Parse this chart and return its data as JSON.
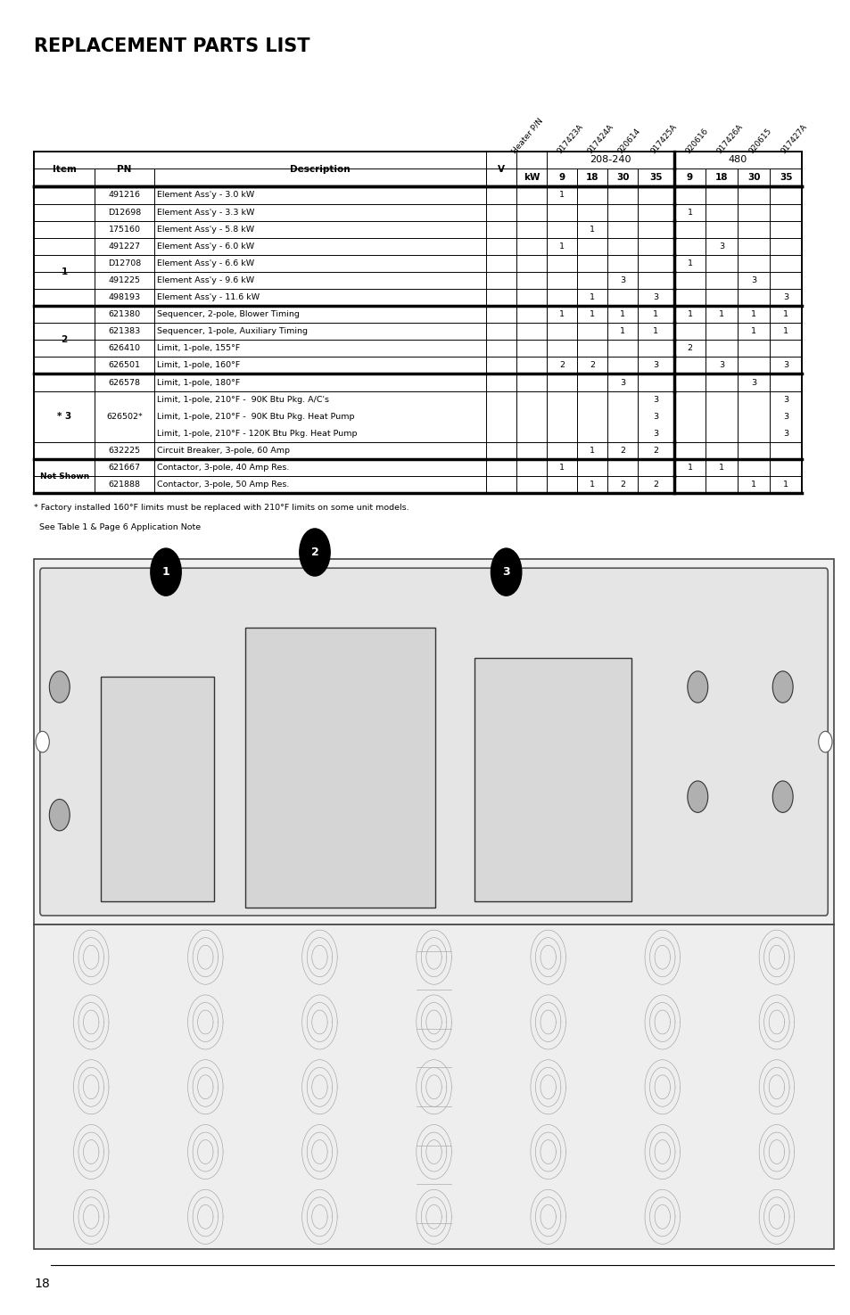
{
  "title": "REPLACEMENT PARTS LIST",
  "page_number": "18",
  "heater_headers": [
    "Heater P/N",
    "917423A",
    "917424A",
    "920614",
    "917425A",
    "920616",
    "917426A",
    "920615",
    "917427A"
  ],
  "rows": [
    {
      "item": "",
      "pn": "491216",
      "desc": "Element Ass'y - 3.0 kW",
      "c208_9": "1",
      "c208_18": "",
      "c208_30": "",
      "c208_35": "",
      "c480_9": "",
      "c480_18": "",
      "c480_30": "",
      "c480_35": ""
    },
    {
      "item": "",
      "pn": "D12698",
      "desc": "Element Ass'y - 3.3 kW",
      "c208_9": "",
      "c208_18": "",
      "c208_30": "",
      "c208_35": "",
      "c480_9": "1",
      "c480_18": "",
      "c480_30": "",
      "c480_35": ""
    },
    {
      "item": "",
      "pn": "175160",
      "desc": "Element Ass'y - 5.8 kW",
      "c208_9": "",
      "c208_18": "1",
      "c208_30": "",
      "c208_35": "",
      "c480_9": "",
      "c480_18": "",
      "c480_30": "",
      "c480_35": ""
    },
    {
      "item": "1",
      "pn": "491227",
      "desc": "Element Ass'y - 6.0 kW",
      "c208_9": "1",
      "c208_18": "",
      "c208_30": "",
      "c208_35": "",
      "c480_9": "",
      "c480_18": "3",
      "c480_30": "",
      "c480_35": ""
    },
    {
      "item": "",
      "pn": "D12708",
      "desc": "Element Ass'y - 6.6 kW",
      "c208_9": "",
      "c208_18": "",
      "c208_30": "",
      "c208_35": "",
      "c480_9": "1",
      "c480_18": "",
      "c480_30": "",
      "c480_35": ""
    },
    {
      "item": "",
      "pn": "491225",
      "desc": "Element Ass'y - 9.6 kW",
      "c208_9": "",
      "c208_18": "",
      "c208_30": "3",
      "c208_35": "",
      "c480_9": "",
      "c480_18": "",
      "c480_30": "3",
      "c480_35": ""
    },
    {
      "item": "",
      "pn": "498193",
      "desc": "Element Ass'y - 11.6 kW",
      "c208_9": "",
      "c208_18": "1",
      "c208_30": "",
      "c208_35": "3",
      "c480_9": "",
      "c480_18": "",
      "c480_30": "",
      "c480_35": "3"
    },
    {
      "item": "2",
      "pn": "621380",
      "desc": "Sequencer, 2-pole, Blower Timing",
      "c208_9": "1",
      "c208_18": "1",
      "c208_30": "1",
      "c208_35": "1",
      "c480_9": "1",
      "c480_18": "1",
      "c480_30": "1",
      "c480_35": "1"
    },
    {
      "item": "",
      "pn": "621383",
      "desc": "Sequencer, 1-pole, Auxiliary Timing",
      "c208_9": "",
      "c208_18": "",
      "c208_30": "1",
      "c208_35": "1",
      "c480_9": "",
      "c480_18": "",
      "c480_30": "1",
      "c480_35": "1"
    },
    {
      "item": "",
      "pn": "626410",
      "desc": "Limit, 1-pole, 155°F",
      "c208_9": "",
      "c208_18": "",
      "c208_30": "",
      "c208_35": "",
      "c480_9": "2",
      "c480_18": "",
      "c480_30": "",
      "c480_35": ""
    },
    {
      "item": "",
      "pn": "626501",
      "desc": "Limit, 1-pole, 160°F",
      "c208_9": "2",
      "c208_18": "2",
      "c208_30": "",
      "c208_35": "3",
      "c480_9": "",
      "c480_18": "3",
      "c480_30": "",
      "c480_35": "3"
    },
    {
      "item": "* 3",
      "pn": "626578",
      "desc": "Limit, 1-pole, 180°F",
      "c208_9": "",
      "c208_18": "",
      "c208_30": "3",
      "c208_35": "",
      "c480_9": "",
      "c480_18": "",
      "c480_30": "3",
      "c480_35": ""
    },
    {
      "item": "",
      "pn": "626502*",
      "desc": "Limit, 1-pole, 210°F -  90K Btu Pkg. A/C's\nLimit, 1-pole, 210°F -  90K Btu Pkg. Heat Pump\nLimit, 1-pole, 210°F - 120K Btu Pkg. Heat Pump",
      "c208_9": "",
      "c208_18": "",
      "c208_30": "",
      "c208_35": "3\n3\n3",
      "c480_9": "",
      "c480_18": "",
      "c480_30": "",
      "c480_35": "3\n3\n3"
    },
    {
      "item": "",
      "pn": "632225",
      "desc": "Circuit Breaker, 3-pole, 60 Amp",
      "c208_9": "",
      "c208_18": "1",
      "c208_30": "2",
      "c208_35": "2",
      "c480_9": "",
      "c480_18": "",
      "c480_30": "",
      "c480_35": ""
    },
    {
      "item": "Not Shown",
      "pn": "621667",
      "desc": "Contactor, 3-pole, 40 Amp Res.",
      "c208_9": "1",
      "c208_18": "",
      "c208_30": "",
      "c208_35": "",
      "c480_9": "1",
      "c480_18": "1",
      "c480_30": "",
      "c480_35": ""
    },
    {
      "item": "",
      "pn": "621888",
      "desc": "Contactor, 3-pole, 50 Amp Res.",
      "c208_9": "",
      "c208_18": "1",
      "c208_30": "2",
      "c208_35": "2",
      "c480_9": "",
      "c480_18": "",
      "c480_30": "1",
      "c480_35": "1"
    }
  ],
  "footnote1": "* Factory installed 160°F limits must be replaced with 210°F limits on some unit models.",
  "footnote2": "  See Table 1 & Page 6 Application Note"
}
